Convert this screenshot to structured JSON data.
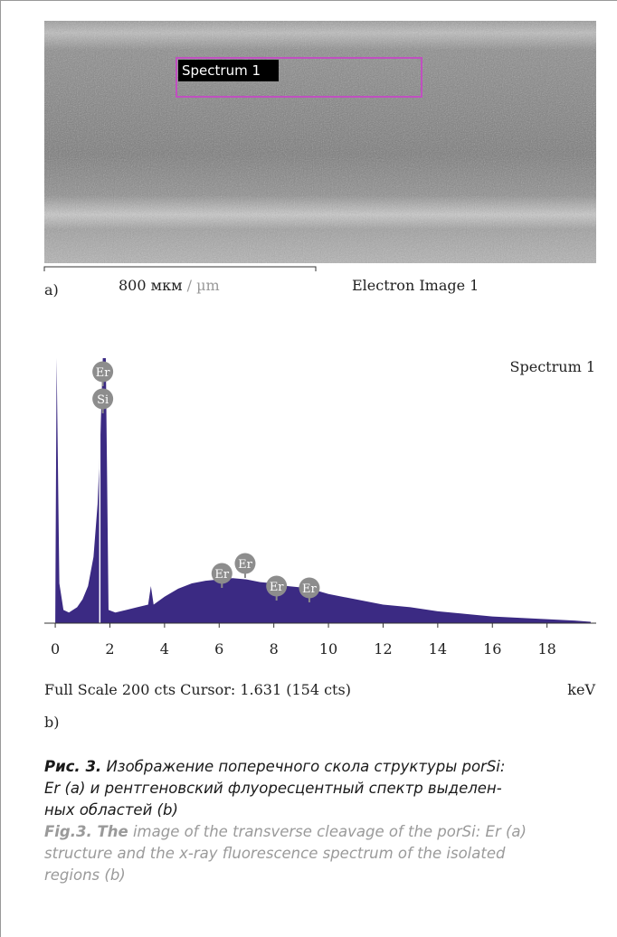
{
  "image": {
    "box_label": "Spectrum 1",
    "panel": "a)",
    "scale_number": "800 мкм",
    "scale_unit": "/ µm",
    "title": "Electron Image 1"
  },
  "chart_data": {
    "type": "area",
    "title": "Spectrum 1",
    "color": "#3b2a83",
    "x": [
      0,
      0.05,
      0.15,
      0.3,
      0.5,
      0.8,
      1.0,
      1.2,
      1.4,
      1.55,
      1.65,
      1.74,
      1.85,
      1.95,
      2.2,
      2.6,
      3.0,
      3.4,
      3.5,
      3.6,
      4.0,
      4.5,
      5.0,
      5.5,
      6.0,
      6.5,
      7.0,
      7.5,
      8.0,
      8.5,
      9.0,
      9.5,
      10.0,
      11.0,
      12.0,
      13.0,
      14.0,
      15.0,
      16.0,
      17.0,
      18.0,
      19.0,
      19.6
    ],
    "series": [
      {
        "name": "Spectrum 1",
        "values": [
          0,
          200,
          30,
          10,
          8,
          12,
          18,
          28,
          50,
          90,
          140,
          200,
          200,
          10,
          8,
          10,
          12,
          14,
          28,
          14,
          20,
          26,
          30,
          32,
          33,
          34,
          33,
          31,
          30,
          28,
          27,
          25,
          22,
          18,
          14,
          12,
          9,
          7,
          5,
          4,
          3,
          2,
          1
        ]
      }
    ],
    "xlim": [
      -0.4,
      19.8
    ],
    "ylim": [
      0,
      200
    ],
    "xticks": [
      0,
      2,
      4,
      6,
      8,
      10,
      12,
      14,
      16,
      18
    ],
    "cursor": 1.631,
    "annotations": [
      {
        "label": "Er",
        "x": 1.74
      },
      {
        "label": "Si",
        "x": 1.74
      },
      {
        "label": "Er",
        "x": 6.1
      },
      {
        "label": "Er",
        "x": 6.95
      },
      {
        "label": "Er",
        "x": 8.1
      },
      {
        "label": "Er",
        "x": 9.3
      }
    ],
    "footer": "Full Scale 200 cts Cursor: 1.631 (154 cts)",
    "x_unit": "keV",
    "panel": "b)"
  },
  "caption": {
    "ru": {
      "label": "Рис. 3.",
      "lines": [
        "Изображение поперечного скола структуры porSi:",
        "Er (a) и рентгеновский флуоресцентный спектр выделен-",
        "ных областей (b)"
      ]
    },
    "en": {
      "label": "Fig.3. The",
      "lines": [
        "image of the transverse cleavage of the porSi: Er (a)",
        "structure and the x-ray fluorescence spectrum of the isolated",
        "regions (b)"
      ]
    }
  }
}
